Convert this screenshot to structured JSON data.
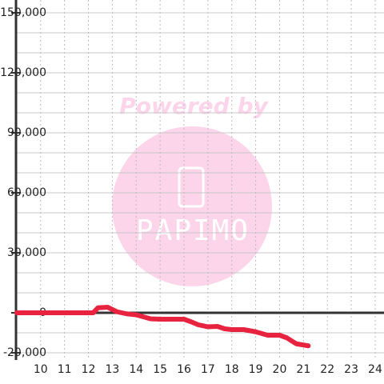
{
  "chart_data": {
    "type": "line",
    "watermark": {
      "text": "Powered by",
      "logo": "PAPIMO"
    },
    "x": [
      9,
      12.2,
      12.4,
      12.8,
      13.2,
      13.6,
      14,
      14.3,
      14.6,
      15,
      15.5,
      16,
      16.3,
      16.6,
      17,
      17.4,
      17.7,
      18,
      18.5,
      19,
      19.5,
      20,
      20.3,
      20.7,
      21.2
    ],
    "series": [
      {
        "color": "#e8233f",
        "values": [
          0,
          0,
          2500,
          2800,
          500,
          -500,
          -1000,
          -2000,
          -3000,
          -3200,
          -3200,
          -3200,
          -4500,
          -6000,
          -7000,
          -6800,
          -8000,
          -8400,
          -8400,
          -9500,
          -11200,
          -11200,
          -12500,
          -15500,
          -16500
        ]
      }
    ],
    "xlim": [
      8.97,
      24.37
    ],
    "ylim": [
      -23600,
      156400
    ],
    "xticks": [
      10,
      11,
      12,
      13,
      14,
      15,
      16,
      17,
      18,
      19,
      20,
      21,
      22,
      23,
      24
    ],
    "yticks": [
      {
        "value": 150000,
        "label": "150,000"
      },
      {
        "value": 120000,
        "label": "120,000"
      },
      {
        "value": 90000,
        "label": "90,000"
      },
      {
        "value": 60000,
        "label": "60,000"
      },
      {
        "value": 30000,
        "label": "30,000"
      },
      0,
      {
        "value": -20000,
        "label": "-20,000"
      }
    ],
    "y_minor_grid": [
      -20000,
      -10000,
      10000,
      20000,
      40000,
      50000,
      70000,
      80000,
      100000,
      110000,
      130000,
      140000
    ],
    "grid": true
  }
}
